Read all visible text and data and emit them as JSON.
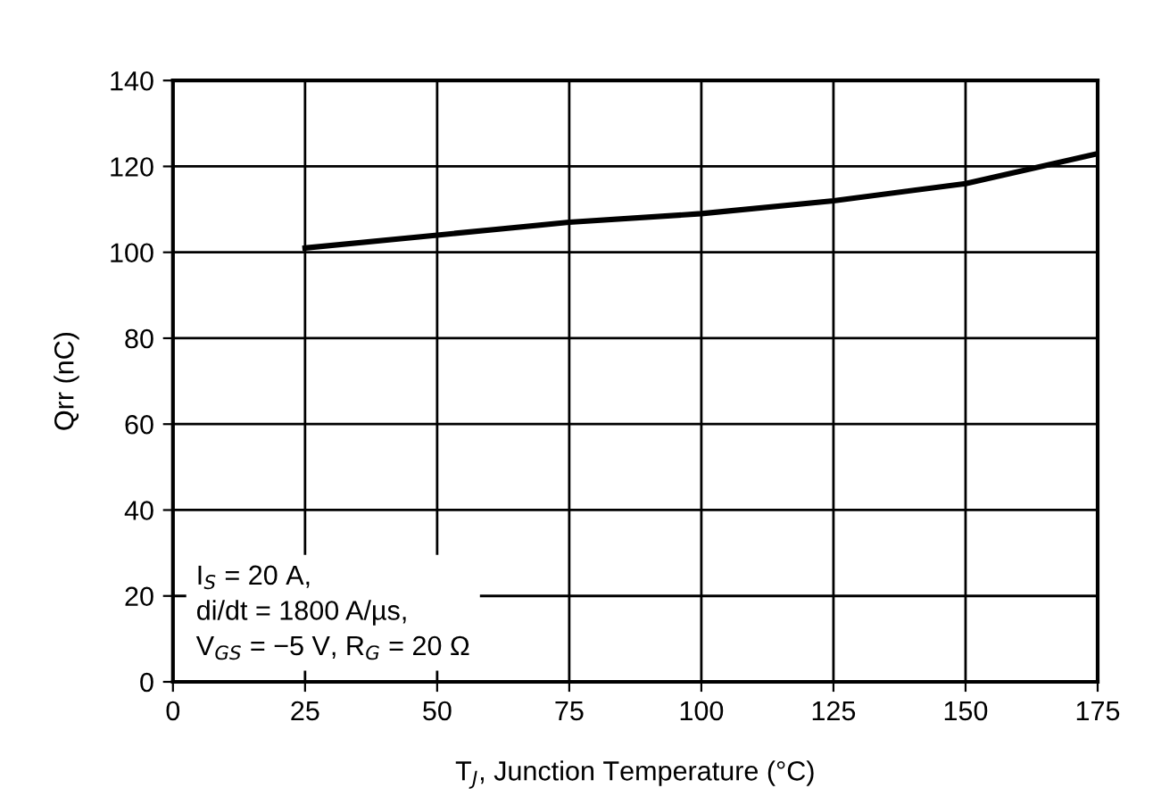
{
  "chart_data": {
    "type": "line",
    "xlabel": "T$_{J}$, Junction Temperature (°C)",
    "ylabel": "Qrr (nC)",
    "x": [
      25,
      50,
      75,
      100,
      125,
      150,
      175
    ],
    "series": [
      {
        "color": "#000000",
        "values": [
          101,
          104,
          107,
          109,
          112,
          116,
          123
        ]
      }
    ],
    "xlim": [
      0,
      175
    ],
    "xticks": [
      0,
      25,
      50,
      75,
      100,
      125,
      150,
      175
    ],
    "ylim": [
      0,
      140
    ],
    "yticks": [
      0,
      20,
      40,
      60,
      80,
      100,
      120,
      140
    ],
    "grid": true,
    "legend": false,
    "marker": "none",
    "line_style": "solid",
    "annotations": [
      "I$_{S}$ = 20 A,\ndi/dt = 1800 A/µs,\nV$_{GS}$ = −5 V, R$_{G}$ = 20 Ω"
    ]
  }
}
